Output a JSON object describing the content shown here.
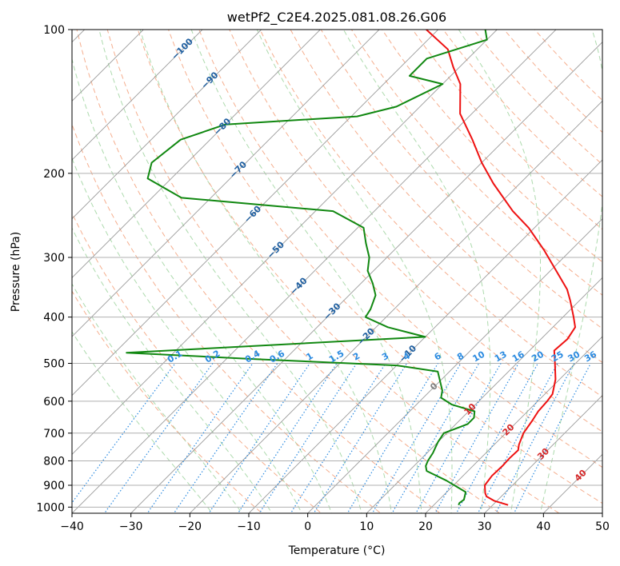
{
  "chart_data": {
    "type": "line",
    "subtype": "skew-t log-p diagram",
    "title": "wetPf2_C2E4.2025.081.08.26.G06",
    "xlabel": "Temperature (°C)",
    "ylabel": "Pressure (hPa)",
    "xlim": [
      -40,
      50
    ],
    "ylim": [
      1030,
      100
    ],
    "x_ticks": [
      -40,
      -30,
      -20,
      -10,
      0,
      10,
      20,
      30,
      40,
      50
    ],
    "x_tick_labels": [
      "−40",
      "−30",
      "−20",
      "−10",
      "0",
      "10",
      "20",
      "30",
      "40",
      "50"
    ],
    "y_ticks": [
      100,
      200,
      300,
      400,
      500,
      600,
      700,
      800,
      900,
      1000
    ],
    "y_tick_labels": [
      "100",
      "200",
      "300",
      "400",
      "500",
      "600",
      "700",
      "800",
      "900",
      "1000"
    ],
    "grid": true,
    "colors": {
      "temperature": "#ee1111",
      "dewpoint": "#118811",
      "isotherm_label": "#1f5fa0",
      "mixing_ratio": "#2a8ae0",
      "isotherm_label_warm": "#d62728",
      "zero_label": "#808080",
      "dry_adiabat": "#f4a582",
      "moist_adiabat": "#9fd39f",
      "skewed_isotherm": "#9a9a9a",
      "grid": "#b0b0b0"
    },
    "series": [
      {
        "name": "Temperature",
        "x_unit": "°C (skewed)",
        "points": [
          [
            32.6,
            990
          ],
          [
            29.5,
            970
          ],
          [
            27.5,
            950
          ],
          [
            26.7,
            935
          ],
          [
            25.3,
            900
          ],
          [
            24.9,
            860
          ],
          [
            25.0,
            820
          ],
          [
            24.9,
            790
          ],
          [
            25.0,
            760
          ],
          [
            24.2,
            740
          ],
          [
            23.0,
            700
          ],
          [
            22.4,
            660
          ],
          [
            21.8,
            630
          ],
          [
            21.6,
            600
          ],
          [
            21.3,
            580
          ],
          [
            19.3,
            540
          ],
          [
            16.5,
            500
          ],
          [
            14.2,
            470
          ],
          [
            14.5,
            445
          ],
          [
            13.8,
            420
          ],
          [
            11.8,
            400
          ],
          [
            8.5,
            370
          ],
          [
            6.0,
            350
          ],
          [
            1.0,
            320
          ],
          [
            -4.5,
            290
          ],
          [
            -11.0,
            260
          ],
          [
            -16.5,
            240
          ],
          [
            -24.5,
            210
          ],
          [
            -30.0,
            190
          ],
          [
            -35.5,
            170
          ],
          [
            -42.0,
            150
          ],
          [
            -47.0,
            130
          ],
          [
            -51.0,
            120
          ],
          [
            -55.0,
            110
          ],
          [
            -62.0,
            100
          ]
        ]
      },
      {
        "name": "Dewpoint",
        "x_unit": "°C (skewed)",
        "points": [
          [
            24.2,
            990
          ],
          [
            24.0,
            980
          ],
          [
            24.2,
            965
          ],
          [
            23.2,
            930
          ],
          [
            18.0,
            880
          ],
          [
            13.0,
            840
          ],
          [
            12.0,
            820
          ],
          [
            11.5,
            800
          ],
          [
            11.0,
            770
          ],
          [
            10.5,
            750
          ],
          [
            10.0,
            730
          ],
          [
            9.5,
            700
          ],
          [
            12.0,
            670
          ],
          [
            12.0,
            650
          ],
          [
            11.0,
            630
          ],
          [
            6.0,
            610
          ],
          [
            3.0,
            590
          ],
          [
            2.0,
            570
          ],
          [
            -2.0,
            520
          ],
          [
            -10.0,
            505
          ],
          [
            -35.0,
            490
          ],
          [
            -58.0,
            475
          ],
          [
            -10.0,
            440
          ],
          [
            -18.0,
            420
          ],
          [
            -23.5,
            400
          ],
          [
            -24.0,
            385
          ],
          [
            -25.5,
            360
          ],
          [
            -28.0,
            340
          ],
          [
            -31.0,
            320
          ],
          [
            -33.0,
            300
          ],
          [
            -36.0,
            280
          ],
          [
            -39.0,
            260
          ],
          [
            -47.0,
            240
          ],
          [
            -75.0,
            225
          ],
          [
            -84.0,
            205
          ],
          [
            -86.0,
            190
          ],
          [
            -85.0,
            170
          ],
          [
            -80.0,
            158
          ],
          [
            -59.0,
            152
          ],
          [
            -54.0,
            145
          ],
          [
            -50.0,
            130
          ],
          [
            -57.0,
            125
          ],
          [
            -57.0,
            115
          ],
          [
            -50.0,
            105
          ],
          [
            -52.0,
            100
          ]
        ]
      }
    ],
    "isotherm_labels": [
      "−100",
      "−90",
      "−80",
      "−70",
      "−60",
      "−50",
      "−40",
      "−30",
      "−20",
      "−10",
      "0",
      "10",
      "20",
      "30",
      "40"
    ],
    "isotherm_label_values": [
      -100,
      -90,
      -80,
      -70,
      -60,
      -50,
      -40,
      -30,
      -20,
      -10,
      0,
      10,
      20,
      30,
      40
    ],
    "isotherm_label_pressures": [
      110,
      128,
      160,
      197,
      244,
      290,
      345,
      390,
      440,
      478,
      560,
      625,
      690,
      775,
      860
    ],
    "mixing_ratio_labels": [
      "0.1",
      "0.2",
      "0.4",
      "0.6",
      "1",
      "1.5",
      "2",
      "3",
      "4",
      "6",
      "8",
      "10",
      "13",
      "16",
      "20",
      "25",
      "30",
      "36"
    ],
    "mixing_ratio_values": [
      0.1,
      0.2,
      0.4,
      0.6,
      1,
      1.5,
      2,
      3,
      4,
      6,
      8,
      10,
      13,
      16,
      20,
      25,
      30,
      36
    ],
    "mixing_ratio_label_pressure": 500,
    "dry_adiabat_thetas_C": [
      -10,
      0,
      10,
      20,
      30,
      40,
      50,
      60,
      70,
      80,
      90,
      100,
      110,
      120,
      130,
      140,
      150,
      160,
      170
    ],
    "moist_adiabat_bases_C": [
      -15,
      -10,
      -5,
      0,
      5,
      10,
      15,
      20,
      25,
      30,
      35,
      40
    ],
    "skewed_isotherm_step_C": 10
  }
}
